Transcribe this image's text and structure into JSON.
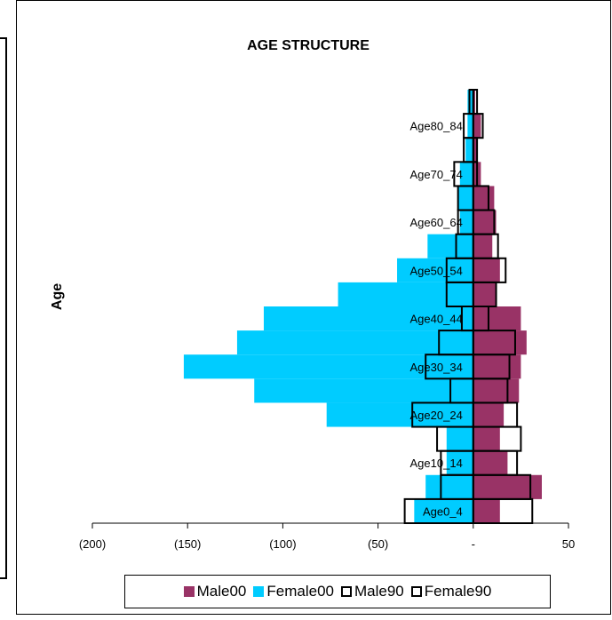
{
  "chart_data": {
    "type": "bar",
    "orientation": "horizontal",
    "title": "AGE STRUCTURE",
    "xlabel": "",
    "ylabel": "Age",
    "xlim": [
      -200,
      50
    ],
    "x_ticks": [
      -200,
      -150,
      -100,
      -50,
      0,
      50
    ],
    "x_tick_labels": [
      "(200)",
      "(150)",
      "(100)",
      "(50)",
      "-",
      "50"
    ],
    "categories": [
      "Age0_4",
      "Age5_9",
      "Age10_14",
      "Age15_19",
      "Age20_24",
      "Age25_29",
      "Age30_34",
      "Age35_39",
      "Age40_44",
      "Age45_49",
      "Age50_54",
      "Age55_59",
      "Age60_64",
      "Age65_69",
      "Age70_74",
      "Age75_79",
      "Age80_84",
      "Age85_"
    ],
    "shown_category_labels": [
      "Age0_4",
      "Age10_14",
      "Age20_24",
      "Age30_34",
      "Age40_44",
      "Age50_54",
      "Age60_64",
      "Age70_74",
      "Age80_84"
    ],
    "series": [
      {
        "name": "Male00",
        "color": "#993366",
        "style": "filled",
        "values": [
          14,
          36,
          18,
          14,
          16,
          24,
          25,
          28,
          25,
          12,
          14,
          10,
          12,
          11,
          4,
          2,
          4,
          1
        ]
      },
      {
        "name": "Female00",
        "color": "#00ccff",
        "style": "filled",
        "values": [
          -31,
          -25,
          -14,
          -14,
          -77,
          -115,
          -152,
          -124,
          -110,
          -71,
          -40,
          -24,
          -7,
          -8,
          -7,
          -4,
          -3,
          -3
        ]
      },
      {
        "name": "Male90",
        "color": "#000000",
        "style": "outline",
        "values": [
          31,
          30,
          23,
          25,
          23,
          18,
          19,
          22,
          8,
          12,
          17,
          13,
          11,
          8,
          2,
          2,
          5,
          2
        ]
      },
      {
        "name": "Female90",
        "color": "#000000",
        "style": "outline",
        "values": [
          -36,
          -17,
          -17,
          -19,
          -32,
          -12,
          -25,
          -18,
          -6,
          -14,
          -14,
          -9,
          -8,
          -8,
          -10,
          -5,
          -5,
          -2
        ]
      }
    ],
    "legend": "bottom",
    "grid": false
  }
}
